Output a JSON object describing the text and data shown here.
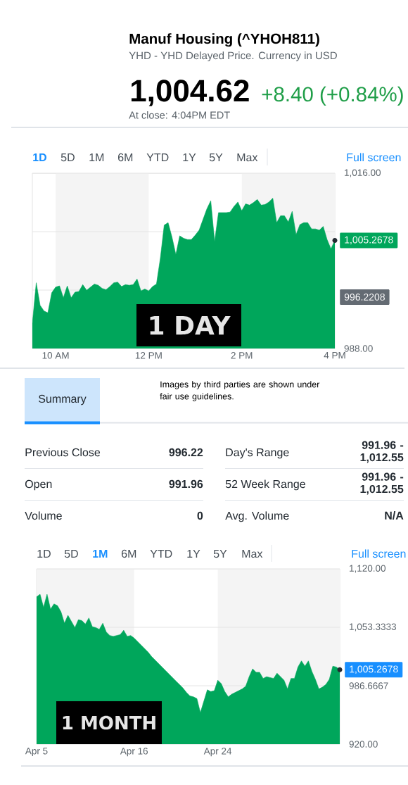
{
  "chart_data": [
    {
      "type": "other",
      "title": "Manuf Housing (^YHOH811)",
      "subtitle": "YHD - YHD Delayed Price. Currency in USD",
      "annotations": [
        "1,004.62",
        "+8.40 (+0.84%)",
        "At close: 4:04PM EDT"
      ]
    },
    {
      "type": "area",
      "color": "#00a65b",
      "categories": [
        null,
        null,
        null,
        null,
        null,
        null,
        "10 AM",
        null,
        null,
        null,
        null,
        null,
        null,
        null,
        null,
        null,
        null,
        null,
        null,
        null,
        null,
        null,
        null,
        null,
        null,
        null,
        null,
        null,
        null,
        null,
        "12 PM",
        null,
        null,
        null,
        null,
        null,
        null,
        null,
        null,
        null,
        null,
        null,
        null,
        null,
        null,
        null,
        null,
        null,
        null,
        null,
        null,
        null,
        null,
        null,
        "2 PM",
        null,
        null,
        null,
        null,
        null,
        null,
        null,
        null,
        null,
        null,
        null,
        null,
        null,
        null,
        null,
        null,
        null,
        null,
        null,
        null,
        null,
        null,
        null,
        "4 PM"
      ],
      "values": [
        992.0,
        998.5,
        994.9,
        994.0,
        993.7,
        996.9,
        997.8,
        998.0,
        996.1,
        998.0,
        996.1,
        997.0,
        997.1,
        998.2,
        997.3,
        997.8,
        998.3,
        998.1,
        997.6,
        997.4,
        997.9,
        998.5,
        998.6,
        997.9,
        998.2,
        998.1,
        998.2,
        999.1,
        997.2,
        997.5,
        997.2,
        997.9,
        998.3,
        1002.4,
        1007.7,
        1008.1,
        1005.8,
        1003.0,
        1006.0,
        1005.6,
        1005.4,
        1005.4,
        1006.1,
        1006.9,
        1008.6,
        1010.3,
        1011.6,
        1005.1,
        1009.7,
        1009.7,
        1009.7,
        1009.8,
        1010.7,
        1011.4,
        1010.0,
        1011.1,
        1010.9,
        1011.3,
        1011.8,
        1010.9,
        1011.0,
        1011.4,
        1012.0,
        1008.1,
        1009.2,
        1009.2,
        1008.2,
        1009.9,
        1006.2,
        1007.8,
        1008.1,
        1008.1,
        1007.1,
        1007.1,
        1006.9,
        1007.5,
        1005.4,
        1003.9,
        1005.3
      ],
      "ylim": [
        988,
        1016
      ],
      "yticks": [
        {
          "value": 988,
          "label": "988.00"
        },
        {
          "value": 997.3333,
          "label": null
        },
        {
          "value": 1006.6667,
          "label": null
        },
        {
          "value": 1016,
          "label": "1,016.00"
        }
      ],
      "grid": "y",
      "bands": [
        {
          "axis": "x",
          "from": "10 AM",
          "to": "12 PM",
          "color": "#f4f4f4"
        },
        {
          "axis": "x",
          "from": "2 PM",
          "to": "4 PM",
          "color": "#f4f4f4"
        }
      ],
      "annotations": [
        "1D",
        "5D",
        "1M",
        "6M",
        "YTD",
        "1Y",
        "5Y",
        "Max",
        "Full screen",
        "1 DAY",
        {
          "text": "1,005.2678",
          "x": "4 PM",
          "y": 1005.2678
        },
        {
          "text": "996.2208",
          "x": "4 PM",
          "y": 996.2208
        }
      ]
    },
    {
      "type": "other",
      "annotations": [
        "Summary",
        "Images by third parties are shown under fair use guidelines.",
        "Previous Close",
        "996.22",
        "Open",
        "991.96",
        "Volume",
        "0",
        "Day's Range",
        "991.96 - 1,012.55",
        "52 Week Range",
        "991.96 - 1,012.55",
        "Avg. Volume",
        "N/A"
      ]
    },
    {
      "type": "area",
      "color": "#00a65b",
      "categories": [
        "Apr 5",
        null,
        null,
        null,
        null,
        null,
        null,
        null,
        null,
        null,
        null,
        null,
        null,
        null,
        null,
        null,
        null,
        null,
        null,
        null,
        null,
        null,
        null,
        null,
        null,
        null,
        null,
        null,
        "Apr 16",
        null,
        null,
        null,
        null,
        null,
        null,
        null,
        null,
        null,
        null,
        null,
        null,
        null,
        null,
        null,
        null,
        null,
        null,
        null,
        null,
        null,
        null,
        null,
        "Apr 24",
        null,
        null,
        null,
        null,
        null,
        null,
        null,
        null,
        null,
        null,
        null,
        null,
        null,
        null,
        null,
        null,
        null,
        null,
        null,
        null,
        null,
        null,
        null,
        null,
        null,
        null,
        null,
        null,
        null,
        null,
        null,
        null,
        null,
        null,
        null
      ],
      "values": [
        1088,
        1091,
        1076,
        1091,
        1074,
        1080,
        1078,
        1071,
        1058,
        1067,
        1060,
        1053,
        1062,
        1061,
        1057,
        1064,
        1054,
        1053,
        1051,
        1058,
        1048,
        1044,
        1043,
        1044,
        1045,
        1050,
        1043,
        1044,
        1041,
        1037,
        1033,
        1029,
        1025,
        1020,
        1016,
        1012,
        1008,
        1004,
        1000,
        996,
        992,
        988,
        984,
        979,
        975,
        974,
        972,
        956,
        969,
        982,
        980,
        981,
        993,
        989,
        980,
        974,
        977,
        979,
        981,
        983,
        986,
        997,
        1006,
        1002,
        1002,
        995,
        997,
        996,
        995,
        1001,
        997,
        993,
        983,
        995,
        995,
        1008,
        1015,
        1009,
        1015,
        1003,
        994,
        983,
        985,
        988,
        994,
        1009,
        1008,
        1005
      ],
      "ylim": [
        920,
        1120
      ],
      "yticks": [
        {
          "value": 920,
          "label": "920.00"
        },
        {
          "value": 986.6667,
          "label": "986.6667"
        },
        {
          "value": 1053.3333,
          "label": "1,053.3333"
        },
        {
          "value": 1120,
          "label": "1,120.00"
        }
      ],
      "grid": "y",
      "bands": [
        {
          "axis": "x",
          "from": "Apr 5",
          "to": "Apr 16",
          "color": "#f4f4f4"
        }
      ],
      "annotations": [
        "1D",
        "5D",
        "1M",
        "6M",
        "YTD",
        "1Y",
        "5Y",
        "Max",
        "Full screen",
        "1 MONTH",
        "1,005.2678"
      ]
    }
  ]
}
